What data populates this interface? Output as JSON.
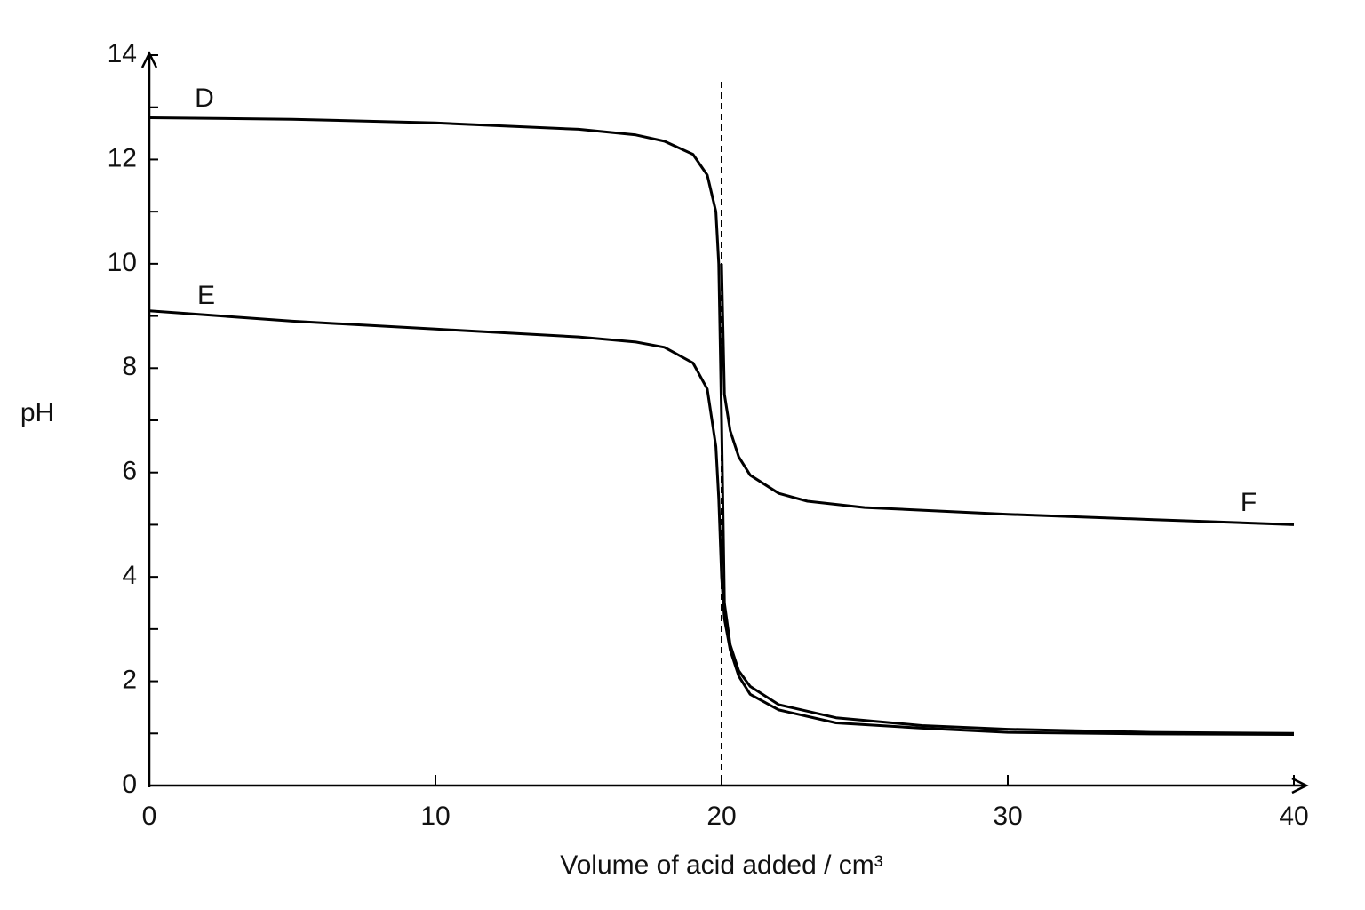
{
  "chart_data": {
    "type": "line",
    "x_label": "Volume of acid added / cm³",
    "y_label": "pH",
    "xlim": [
      0,
      40
    ],
    "xticks": [
      0,
      10,
      20,
      30,
      40
    ],
    "ylim": [
      0,
      14
    ],
    "yticks": [
      0,
      2,
      4,
      6,
      8,
      10,
      12,
      14
    ],
    "yminor_ticks": [
      1,
      3,
      5,
      7,
      9,
      11,
      13
    ],
    "vline": 20,
    "series": [
      {
        "name": "D",
        "color": "#000000",
        "x": [
          0,
          5,
          10,
          15,
          17,
          18,
          19,
          19.5,
          19.8,
          19.9,
          20,
          20.1,
          20.3,
          20.6,
          21,
          22,
          24,
          27,
          30,
          35,
          40
        ],
        "values": [
          12.8,
          12.77,
          12.7,
          12.58,
          12.47,
          12.35,
          12.1,
          11.7,
          11,
          10,
          7,
          3.5,
          2.7,
          2.2,
          1.9,
          1.55,
          1.3,
          1.15,
          1.08,
          1.02,
          1.0
        ]
      },
      {
        "name": "E",
        "color": "#000000",
        "x": [
          0,
          5,
          10,
          15,
          17,
          18,
          19,
          19.5,
          19.8,
          19.9,
          20,
          20.1,
          20.3,
          20.6,
          21,
          22,
          24,
          27,
          30,
          35,
          40
        ],
        "values": [
          9.1,
          8.9,
          8.75,
          8.6,
          8.5,
          8.4,
          8.1,
          7.6,
          6.5,
          5.5,
          4,
          3.2,
          2.6,
          2.1,
          1.75,
          1.45,
          1.2,
          1.1,
          1.02,
          0.99,
          0.98
        ]
      },
      {
        "name": "F",
        "color": "#000000",
        "x": [
          20,
          20.1,
          20.3,
          20.6,
          21,
          22,
          23,
          25,
          30,
          35,
          40
        ],
        "values": [
          10,
          7.5,
          6.8,
          6.3,
          5.95,
          5.6,
          5.45,
          5.33,
          5.2,
          5.1,
          5.0
        ]
      }
    ]
  }
}
